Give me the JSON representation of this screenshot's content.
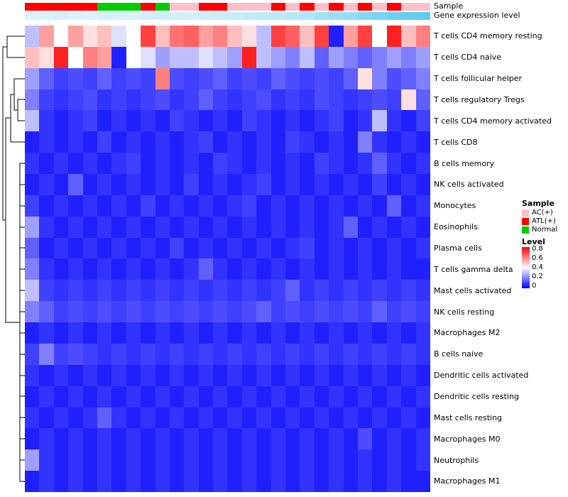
{
  "annotations": {
    "sample_label": "Sample",
    "expr_label": "Gene expression level"
  },
  "legend": {
    "sample_title": "Sample",
    "sample_entries": [
      {
        "label": "AC(+)",
        "color": "#FFC0CB"
      },
      {
        "label": "ATL(+)",
        "color": "#FF0000"
      },
      {
        "label": "Normal",
        "color": "#00CC00"
      }
    ],
    "level_title": "Level",
    "level_ticks": [
      "0.8",
      "0.6",
      "0.4",
      "0.2",
      "0"
    ]
  },
  "colors": {
    "low": "#0000FF",
    "mid": "#FFFFFF",
    "high": "#FF0000",
    "expr_low": "#EAF7FC",
    "expr_high": "#57CBF0",
    "sample_map": {
      "AC(+)": "#FFC0CB",
      "ATL(+)": "#FF0000",
      "Normal": "#00CC00"
    }
  },
  "chart_data": {
    "type": "heatmap",
    "title": "",
    "value_range": [
      0,
      0.8
    ],
    "n_cols": 28,
    "rows": [
      "T cells CD4 memory resting",
      "T cells CD4 naive",
      "T cells follicular helper",
      "T cells regulatory Tregs",
      "T cells CD4 memory activated",
      "T cells CD8",
      "B cells memory",
      "NK cells activated",
      "Monocytes",
      "Eosinophils",
      "Plasma cells",
      "T cells gamma delta",
      "Mast cells activated",
      "NK cells resting",
      "Macrophages M2",
      "B cells naive",
      "Dendritic cells activated",
      "Dendritic cells resting",
      "Mast cells resting",
      "Macrophages M0",
      "Neutrophils",
      "Macrophages M1"
    ],
    "col_annotations": {
      "sample": [
        "ATL(+)",
        "ATL(+)",
        "ATL(+)",
        "ATL(+)",
        "ATL(+)",
        "Normal",
        "Normal",
        "Normal",
        "ATL(+)",
        "Normal",
        "AC(+)",
        "AC(+)",
        "ATL(+)",
        "ATL(+)",
        "AC(+)",
        "AC(+)",
        "AC(+)",
        "ATL(+)",
        "AC(+)",
        "ATL(+)",
        "AC(+)",
        "ATL(+)",
        "AC(+)",
        "ATL(+)",
        "AC(+)",
        "ATL(+)",
        "AC(+)",
        "AC(+)"
      ],
      "gene_expression_level": [
        0.1,
        0.12,
        0.15,
        0.12,
        0.1,
        0.15,
        0.12,
        0.1,
        0.15,
        0.2,
        0.18,
        0.15,
        0.2,
        0.22,
        0.25,
        0.28,
        0.3,
        0.32,
        0.35,
        0.4,
        0.5,
        0.55,
        0.6,
        0.7,
        0.78,
        0.85,
        0.9,
        0.95
      ]
    },
    "values": [
      [
        0.3,
        0.55,
        0.4,
        0.55,
        0.45,
        0.5,
        0.35,
        0.4,
        0.7,
        0.5,
        0.62,
        0.65,
        0.55,
        0.6,
        0.5,
        0.45,
        0.3,
        0.7,
        0.65,
        0.5,
        0.7,
        0.05,
        0.55,
        0.7,
        0.4,
        0.75,
        0.5,
        0.6
      ],
      [
        0.5,
        0.45,
        0.75,
        0.4,
        0.6,
        0.55,
        0.05,
        0.4,
        0.35,
        0.25,
        0.3,
        0.3,
        0.35,
        0.3,
        0.25,
        0.75,
        0.3,
        0.25,
        0.2,
        0.3,
        0.15,
        0.25,
        0.2,
        0.15,
        0.2,
        0.25,
        0.2,
        0.25
      ],
      [
        0.25,
        0.15,
        0.1,
        0.12,
        0.1,
        0.15,
        0.1,
        0.12,
        0.1,
        0.6,
        0.12,
        0.1,
        0.12,
        0.15,
        0.1,
        0.12,
        0.1,
        0.15,
        0.12,
        0.1,
        0.12,
        0.1,
        0.15,
        0.45,
        0.2,
        0.12,
        0.15,
        0.2
      ],
      [
        0.2,
        0.1,
        0.08,
        0.1,
        0.12,
        0.08,
        0.1,
        0.08,
        0.1,
        0.12,
        0.08,
        0.1,
        0.15,
        0.1,
        0.08,
        0.1,
        0.12,
        0.08,
        0.1,
        0.08,
        0.12,
        0.1,
        0.08,
        0.1,
        0.12,
        0.1,
        0.45,
        0.15
      ],
      [
        0.3,
        0.08,
        0.05,
        0.08,
        0.1,
        0.05,
        0.08,
        0.05,
        0.08,
        0.05,
        0.1,
        0.08,
        0.05,
        0.08,
        0.05,
        0.1,
        0.08,
        0.05,
        0.08,
        0.05,
        0.08,
        0.1,
        0.05,
        0.08,
        0.3,
        0.08,
        0.05,
        0.1
      ],
      [
        0.05,
        0.08,
        0.05,
        0.08,
        0.05,
        0.1,
        0.05,
        0.08,
        0.05,
        0.08,
        0.05,
        0.08,
        0.1,
        0.05,
        0.08,
        0.05,
        0.08,
        0.05,
        0.1,
        0.08,
        0.05,
        0.08,
        0.05,
        0.2,
        0.08,
        0.05,
        0.08,
        0.05
      ],
      [
        0.08,
        0.05,
        0.08,
        0.05,
        0.08,
        0.05,
        0.08,
        0.1,
        0.05,
        0.08,
        0.05,
        0.08,
        0.05,
        0.1,
        0.08,
        0.05,
        0.08,
        0.05,
        0.08,
        0.05,
        0.1,
        0.08,
        0.05,
        0.08,
        0.15,
        0.08,
        0.05,
        0.08
      ],
      [
        0.05,
        0.08,
        0.05,
        0.15,
        0.05,
        0.08,
        0.05,
        0.08,
        0.05,
        0.08,
        0.05,
        0.1,
        0.05,
        0.08,
        0.05,
        0.08,
        0.1,
        0.05,
        0.08,
        0.05,
        0.08,
        0.05,
        0.08,
        0.05,
        0.1,
        0.05,
        0.08,
        0.05
      ],
      [
        0.1,
        0.05,
        0.08,
        0.05,
        0.08,
        0.05,
        0.08,
        0.05,
        0.1,
        0.05,
        0.08,
        0.05,
        0.08,
        0.05,
        0.08,
        0.1,
        0.05,
        0.08,
        0.05,
        0.08,
        0.05,
        0.08,
        0.05,
        0.08,
        0.05,
        0.15,
        0.05,
        0.08
      ],
      [
        0.25,
        0.08,
        0.05,
        0.08,
        0.05,
        0.08,
        0.05,
        0.08,
        0.05,
        0.08,
        0.05,
        0.08,
        0.05,
        0.08,
        0.05,
        0.08,
        0.05,
        0.08,
        0.05,
        0.08,
        0.05,
        0.08,
        0.15,
        0.05,
        0.08,
        0.05,
        0.08,
        0.05
      ],
      [
        0.15,
        0.05,
        0.08,
        0.05,
        0.08,
        0.05,
        0.08,
        0.05,
        0.08,
        0.05,
        0.1,
        0.05,
        0.08,
        0.05,
        0.08,
        0.05,
        0.08,
        0.05,
        0.08,
        0.1,
        0.05,
        0.08,
        0.05,
        0.08,
        0.05,
        0.08,
        0.05,
        0.08
      ],
      [
        0.2,
        0.08,
        0.05,
        0.08,
        0.05,
        0.08,
        0.05,
        0.08,
        0.05,
        0.08,
        0.05,
        0.08,
        0.15,
        0.08,
        0.05,
        0.08,
        0.05,
        0.08,
        0.05,
        0.08,
        0.05,
        0.08,
        0.05,
        0.08,
        0.05,
        0.08,
        0.05,
        0.05
      ],
      [
        0.3,
        0.1,
        0.08,
        0.1,
        0.08,
        0.1,
        0.08,
        0.1,
        0.08,
        0.1,
        0.08,
        0.1,
        0.08,
        0.1,
        0.08,
        0.1,
        0.08,
        0.1,
        0.15,
        0.08,
        0.1,
        0.08,
        0.1,
        0.08,
        0.1,
        0.08,
        0.1,
        0.08
      ],
      [
        0.2,
        0.15,
        0.1,
        0.12,
        0.1,
        0.12,
        0.1,
        0.12,
        0.1,
        0.12,
        0.1,
        0.12,
        0.1,
        0.12,
        0.1,
        0.12,
        0.15,
        0.1,
        0.12,
        0.1,
        0.12,
        0.1,
        0.12,
        0.1,
        0.15,
        0.1,
        0.12,
        0.1
      ],
      [
        0.05,
        0.08,
        0.05,
        0.08,
        0.05,
        0.08,
        0.05,
        0.08,
        0.05,
        0.08,
        0.05,
        0.08,
        0.05,
        0.08,
        0.05,
        0.08,
        0.05,
        0.08,
        0.05,
        0.08,
        0.05,
        0.08,
        0.05,
        0.08,
        0.05,
        0.08,
        0.05,
        0.08
      ],
      [
        0.1,
        0.2,
        0.1,
        0.12,
        0.1,
        0.08,
        0.1,
        0.08,
        0.1,
        0.08,
        0.1,
        0.08,
        0.1,
        0.08,
        0.1,
        0.08,
        0.1,
        0.08,
        0.1,
        0.08,
        0.1,
        0.08,
        0.1,
        0.08,
        0.1,
        0.08,
        0.1,
        0.08
      ],
      [
        0.08,
        0.05,
        0.08,
        0.05,
        0.08,
        0.05,
        0.08,
        0.05,
        0.08,
        0.05,
        0.08,
        0.05,
        0.08,
        0.05,
        0.08,
        0.05,
        0.08,
        0.05,
        0.08,
        0.05,
        0.08,
        0.05,
        0.08,
        0.05,
        0.08,
        0.05,
        0.08,
        0.05
      ],
      [
        0.05,
        0.08,
        0.05,
        0.08,
        0.05,
        0.08,
        0.05,
        0.08,
        0.05,
        0.08,
        0.05,
        0.08,
        0.05,
        0.08,
        0.05,
        0.08,
        0.05,
        0.08,
        0.05,
        0.08,
        0.05,
        0.08,
        0.05,
        0.08,
        0.05,
        0.08,
        0.05,
        0.08
      ],
      [
        0.08,
        0.05,
        0.08,
        0.05,
        0.08,
        0.15,
        0.08,
        0.05,
        0.08,
        0.05,
        0.08,
        0.05,
        0.08,
        0.05,
        0.08,
        0.05,
        0.08,
        0.05,
        0.08,
        0.05,
        0.08,
        0.05,
        0.08,
        0.05,
        0.08,
        0.05,
        0.08,
        0.05
      ],
      [
        0.05,
        0.08,
        0.05,
        0.08,
        0.05,
        0.08,
        0.05,
        0.08,
        0.05,
        0.08,
        0.05,
        0.08,
        0.05,
        0.08,
        0.05,
        0.08,
        0.05,
        0.08,
        0.05,
        0.08,
        0.05,
        0.08,
        0.05,
        0.12,
        0.05,
        0.08,
        0.05,
        0.08
      ],
      [
        0.25,
        0.08,
        0.05,
        0.08,
        0.05,
        0.08,
        0.05,
        0.08,
        0.05,
        0.08,
        0.05,
        0.08,
        0.05,
        0.08,
        0.05,
        0.08,
        0.05,
        0.08,
        0.05,
        0.08,
        0.05,
        0.08,
        0.05,
        0.08,
        0.05,
        0.08,
        0.05,
        0.08
      ],
      [
        0.05,
        0.08,
        0.05,
        0.08,
        0.05,
        0.08,
        0.05,
        0.08,
        0.05,
        0.08,
        0.05,
        0.08,
        0.05,
        0.08,
        0.05,
        0.08,
        0.05,
        0.08,
        0.05,
        0.08,
        0.05,
        0.08,
        0.05,
        0.08,
        0.05,
        0.08,
        0.05,
        0.05
      ]
    ]
  }
}
